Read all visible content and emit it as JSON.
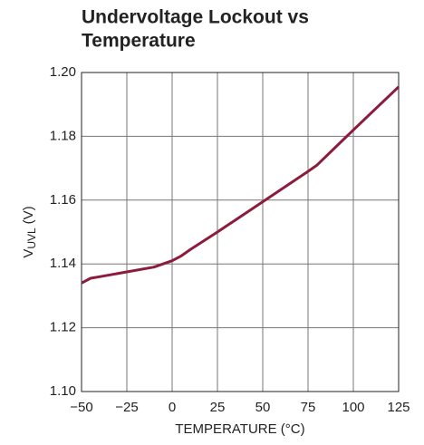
{
  "chart_data": {
    "type": "line",
    "title_lines": [
      "Undervoltage Lockout vs",
      "Temperature"
    ],
    "ylabel_parts": [
      "V",
      "UVL",
      "(V)"
    ],
    "xlabel": "TEMPERATURE (°C)",
    "x": [
      -50,
      -45,
      -40,
      -25,
      -10,
      0,
      5,
      10,
      25,
      50,
      75,
      80,
      100,
      125
    ],
    "series": [
      {
        "color": "#8c1c3d",
        "values": [
          1.134,
          1.1355,
          1.136,
          1.1375,
          1.139,
          1.141,
          1.1425,
          1.1445,
          1.15,
          1.1595,
          1.169,
          1.171,
          1.182,
          1.1955
        ]
      }
    ],
    "xlim": [
      -50,
      125
    ],
    "xticks": [
      {
        "value": -50,
        "label": "−50"
      },
      {
        "value": -25,
        "label": "−25"
      },
      0,
      25,
      50,
      75,
      100,
      125
    ],
    "ylim": [
      1.1,
      1.2
    ],
    "yticks": [
      {
        "value": 1.1,
        "label": "1.10"
      },
      1.12,
      1.14,
      1.16,
      1.18,
      {
        "value": 1.2,
        "label": "1.20"
      }
    ],
    "grid": true
  }
}
